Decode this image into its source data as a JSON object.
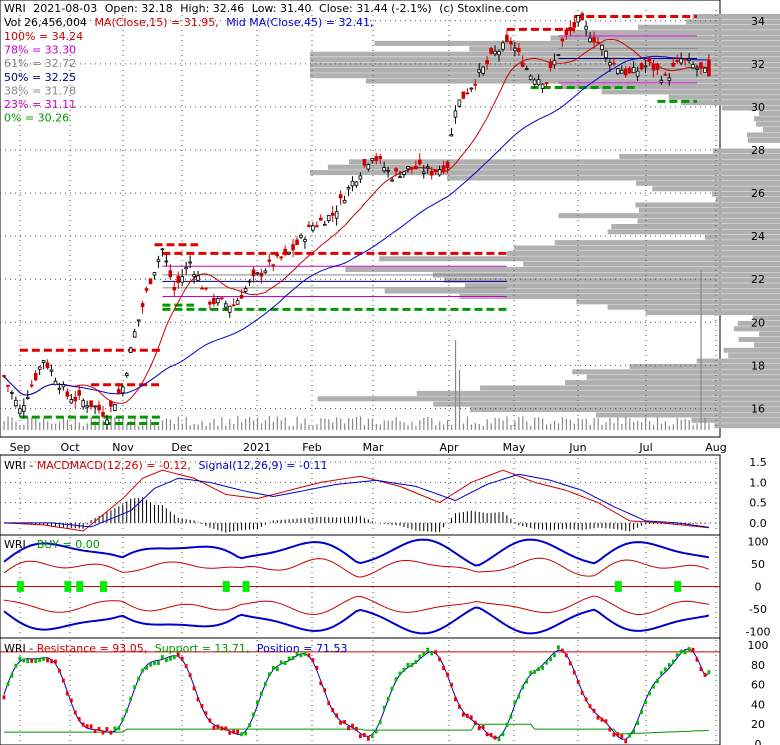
{
  "header": {
    "line1": {
      "ticker": "WRI",
      "date": "2021-08-03",
      "open": "Open: 32.18",
      "high": "High: 32.46",
      "low": "Low: 31.40",
      "close": "Close: 31.44 (-2.1%)",
      "credit": "(c) Stoxline.com"
    },
    "line2": {
      "vol": "Vol 26,456,004",
      "ma": "MA(Close,15) = 31.95,",
      "mid": "Mid MA(Close,45) = 32.41,"
    }
  },
  "colors": {
    "up": "#000000",
    "down": "#cc0000",
    "ma15": "#cc0000",
    "ma45": "#0000cc",
    "res": "#e00000",
    "sup": "#009900",
    "fib": "#cc00cc",
    "fib50": "#000088",
    "vp": "#b0b0b0",
    "grid": "#555555"
  },
  "chart_data": [
    {
      "id": "price",
      "type": "candlestick",
      "ylim": [
        15,
        34.5
      ],
      "y_ticks": [
        16,
        18,
        20,
        22,
        24,
        26,
        28,
        30,
        32,
        34
      ],
      "x_labels": [
        "Sep",
        "Oct",
        "Nov",
        "Dec",
        "2021",
        "Feb",
        "Mar",
        "Apr",
        "May",
        "Jun",
        "Jul",
        "Aug"
      ],
      "fib_levels": [
        {
          "label": "100% = 34.24",
          "value": 34.24,
          "color": "#cc0000"
        },
        {
          "label": "78% = 33.30",
          "value": 33.3,
          "color": "#cc00cc"
        },
        {
          "label": "61% = 32.72",
          "value": 32.72,
          "color": "#888888"
        },
        {
          "label": "50% = 32.25",
          "value": 32.25,
          "color": "#000088"
        },
        {
          "label": "38% = 31.78",
          "value": 31.78,
          "color": "#888888"
        },
        {
          "label": "23% = 31.11",
          "value": 31.11,
          "color": "#cc00cc"
        },
        {
          "label": "0% = 30.26",
          "value": 30.26,
          "color": "#009900"
        }
      ],
      "anchors": [
        [
          0,
          17.5
        ],
        [
          4,
          15.9
        ],
        [
          10,
          18.3
        ],
        [
          16,
          16.6
        ],
        [
          22,
          16.2
        ],
        [
          26,
          15.7
        ],
        [
          30,
          17.0
        ],
        [
          33,
          19.5
        ],
        [
          37,
          22.0
        ],
        [
          40,
          23.4
        ],
        [
          43,
          21.5
        ],
        [
          47,
          22.8
        ],
        [
          52,
          21.0
        ],
        [
          58,
          20.8
        ],
        [
          62,
          21.8
        ],
        [
          66,
          22.5
        ],
        [
          72,
          23.2
        ],
        [
          78,
          24.5
        ],
        [
          83,
          25.0
        ],
        [
          88,
          26.5
        ],
        [
          93,
          27.8
        ],
        [
          98,
          26.8
        ],
        [
          103,
          27.2
        ],
        [
          108,
          27.0
        ],
        [
          112,
          27.3
        ],
        [
          114,
          30.0
        ],
        [
          118,
          31.0
        ],
        [
          124,
          32.5
        ],
        [
          128,
          33.0
        ],
        [
          133,
          31.5
        ],
        [
          137,
          31.2
        ],
        [
          141,
          33.0
        ],
        [
          145,
          34.0
        ],
        [
          150,
          33.0
        ],
        [
          154,
          32.0
        ],
        [
          158,
          31.5
        ],
        [
          163,
          32.0
        ],
        [
          167,
          31.3
        ],
        [
          171,
          32.2
        ],
        [
          175,
          31.8
        ],
        [
          178,
          31.44
        ]
      ]
    },
    {
      "id": "macd",
      "type": "line",
      "label": "MACDMACD(12,26) = -0.12,",
      "signal_label": "Signal(12,26,9) = -0.11",
      "ylim": [
        -0.25,
        1.6
      ],
      "y_ticks": [
        0.0,
        0.5,
        1.0,
        1.5
      ],
      "macd_anchors": [
        [
          0,
          0.0
        ],
        [
          10,
          -0.05
        ],
        [
          20,
          -0.2
        ],
        [
          30,
          0.6
        ],
        [
          35,
          1.1
        ],
        [
          40,
          1.3
        ],
        [
          48,
          1.1
        ],
        [
          56,
          0.7
        ],
        [
          64,
          0.6
        ],
        [
          72,
          0.8
        ],
        [
          80,
          1.0
        ],
        [
          90,
          1.15
        ],
        [
          100,
          0.9
        ],
        [
          110,
          0.5
        ],
        [
          118,
          1.0
        ],
        [
          126,
          1.3
        ],
        [
          134,
          1.0
        ],
        [
          142,
          0.8
        ],
        [
          150,
          0.5
        ],
        [
          158,
          0.05
        ],
        [
          166,
          0.0
        ],
        [
          178,
          -0.12
        ]
      ],
      "signal_anchors": [
        [
          0,
          0.0
        ],
        [
          12,
          0.0
        ],
        [
          22,
          -0.1
        ],
        [
          32,
          0.3
        ],
        [
          38,
          0.85
        ],
        [
          44,
          1.1
        ],
        [
          52,
          1.0
        ],
        [
          60,
          0.8
        ],
        [
          68,
          0.65
        ],
        [
          76,
          0.8
        ],
        [
          84,
          0.95
        ],
        [
          94,
          1.05
        ],
        [
          104,
          0.9
        ],
        [
          114,
          0.55
        ],
        [
          122,
          0.95
        ],
        [
          130,
          1.2
        ],
        [
          138,
          1.05
        ],
        [
          146,
          0.8
        ],
        [
          154,
          0.4
        ],
        [
          162,
          0.05
        ],
        [
          170,
          0.0
        ],
        [
          178,
          -0.11
        ]
      ]
    },
    {
      "id": "buy",
      "type": "line",
      "label": "BUY = 0.00",
      "ylim": [
        -110,
        110
      ],
      "y_ticks": [
        100,
        50,
        0,
        -50,
        -100
      ],
      "buy_signals": [
        4,
        16,
        19,
        25,
        56,
        61,
        155,
        170
      ]
    },
    {
      "id": "res",
      "type": "line",
      "resistance_label": "Resistance = 93.05,",
      "support_label": "Support = 13.71,",
      "position_label": "Position = 71.53",
      "ylim": [
        0,
        105
      ],
      "y_ticks": [
        100,
        80,
        60,
        40,
        20,
        0
      ]
    }
  ]
}
